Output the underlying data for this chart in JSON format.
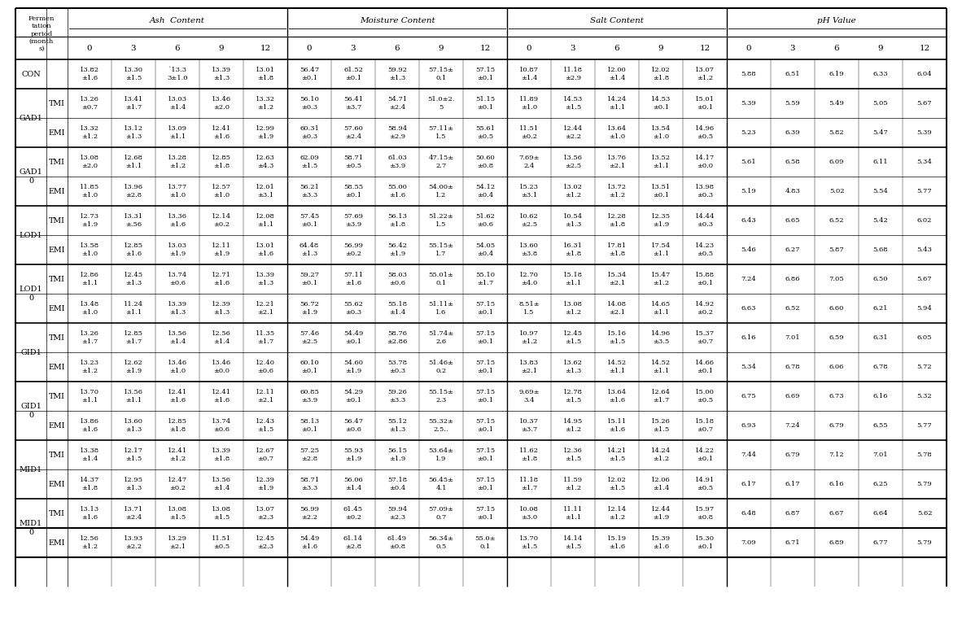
{
  "col_months": [
    "0",
    "3",
    "6",
    "9",
    "12",
    "0",
    "3",
    "6",
    "9",
    "12",
    "0",
    "3",
    "6",
    "9",
    "12",
    "0",
    "3",
    "6",
    "9",
    "12"
  ],
  "group_labels": [
    "Ash  Content",
    "Moisture Content",
    "Salt Content",
    "pH Value"
  ],
  "rows": [
    {
      "group": "CON",
      "sub": "",
      "cells": [
        "13.82\n±1.6",
        "13.30\n±1.5",
        "`13.3\n3±1.0",
        "13.39\n±1.3",
        "13.01\n±1.8",
        "56.47\n±0.1",
        "61.52\n±0.1",
        "59.92\n±1.3",
        "57.15±\n0.1",
        "57.15\n±0.1",
        "10.87\n±1.4",
        "11.18\n±2.9",
        "12.00\n±1.4",
        "12.02\n±1.8",
        "13.07\n±1.2",
        "5.88",
        "6.51",
        "6.19",
        "6.33",
        "6.04"
      ]
    },
    {
      "group": "GAD1",
      "sub": "TMI",
      "cells": [
        "13.26\n±0.7",
        "13.41\n±1.7",
        "13.03\n±1.4",
        "13.46\n±2.0",
        "13.32\n±1.2",
        "56.10\n±0.3",
        "56.41\n±3.7",
        "54.71\n±2.4",
        "51.0±2.\n5",
        "51.15\n±0.1",
        "11.89\n±1.0",
        "14.53\n±1.5",
        "14.24\n±1.1",
        "14.53\n±0.1",
        "15.01\n±0.1",
        "5.39",
        "5.59",
        "5.49",
        "5.05",
        "5.67"
      ]
    },
    {
      "group": "",
      "sub": "EMI",
      "cells": [
        "13.32\n±1.2",
        "13.12\n±1.3",
        "13.09\n±1.1",
        "12.41\n±1.6",
        "12.99\n±1.9",
        "60.31\n±0.3",
        "57.60\n±2.4",
        "58.94\n±2.9",
        "57.11±\n1.5",
        "55.61\n±0.5",
        "11.51\n±0.2",
        "12.44\n±2.2",
        "13.64\n±1.0",
        "13.54\n±1.0",
        "14.96\n±0.5",
        "5.23",
        "6.39",
        "5.82",
        "5.47",
        "5.39"
      ]
    },
    {
      "group": "GAD1\n0",
      "sub": "TMI",
      "cells": [
        "13.08\n±2.0",
        "12.68\n±1.1",
        "13.28\n±1.2",
        "12.85\n±1.8",
        "12.63\n±4.3",
        "62.09\n±1.5",
        "58.71\n±0.5",
        "61.03\n±3.9",
        "47.15±\n2.7",
        "50.60\n±0.8",
        "7.69±\n2.4",
        "13.56\n±2.5",
        "13.76\n±2.1",
        "13.52\n±1.1",
        "14.17\n±0.0",
        "5.61",
        "6.58",
        "6.09",
        "6.11",
        "5.34"
      ]
    },
    {
      "group": "",
      "sub": "EMI",
      "cells": [
        "11.85\n±1.0",
        "13.96\n±2.8",
        "13.77\n±1.0",
        "12.57\n±1.0",
        "12.01\n±3.1",
        "56.21\n±3.3",
        "58.55\n±0.1",
        "55.00\n±1.6",
        "54.00±\n1.2",
        "54.12\n±0.4",
        "15.23\n±3.1",
        "13.02\n±1.2",
        "13.72\n±1.2",
        "13.51\n±0.1",
        "13.98\n±0.3",
        "5.19",
        "4.83",
        "5.02",
        "5.54",
        "5.77"
      ]
    },
    {
      "group": "LOD1",
      "sub": "TMI",
      "cells": [
        "12.73\n±1.9",
        "13.31\n±.56",
        "13.36\n±1.6",
        "12.14\n±0.2",
        "12.08\n±1.1",
        "57.45\n±0.1",
        "57.69\n±3.9",
        "56.13\n±1.8",
        "51.22±\n1.5",
        "51.62\n±0.6",
        "10.62\n±2.5",
        "10.54\n±1.3",
        "12.28\n±1.8",
        "12.35\n±1.9",
        "14.44\n±0.3",
        "6.43",
        "6.65",
        "6.52",
        "5.42",
        "6.02"
      ]
    },
    {
      "group": "",
      "sub": "EMI",
      "cells": [
        "13.58\n±1.0",
        "12.85\n±1.6",
        "13.03\n±1.9",
        "12.11\n±1.9",
        "13.01\n±1.6",
        "64.48\n±1.3",
        "56.99\n±0.2",
        "56.42\n±1.9",
        "55.15±\n1.7",
        "54.05\n±0.4",
        "13.60\n±3.8",
        "16.31\n±1.8",
        "17.81\n±1.8",
        "17.54\n±1.1",
        "14.23\n±0.5",
        "5.46",
        "6.27",
        "5.87",
        "5.68",
        "5.43"
      ]
    },
    {
      "group": "LOD1\n0",
      "sub": "TMI",
      "cells": [
        "12.86\n±1.1",
        "12.45\n±1.3",
        "13.74\n±0.6",
        "12.71\n±1.6",
        "13.39\n±1.3",
        "59.27\n±0.1",
        "57.11\n±1.6",
        "58.03\n±0.6",
        "55.01±\n0.1",
        "55.10\n±1.7",
        "12.70\n±4.0",
        "15.18\n±1.1",
        "15.34\n±2.1",
        "15.47\n±1.2",
        "15.88\n±0.1",
        "7.24",
        "6.86",
        "7.05",
        "6.50",
        "5.67"
      ]
    },
    {
      "group": "",
      "sub": "EMI",
      "cells": [
        "13.48\n±1.0",
        "11.24\n±1.1",
        "13.39\n±1.3",
        "12.39\n±1.3",
        "12.21\n±2.1",
        "56.72\n±1.9",
        "55.62\n±0.3",
        "55.18\n±1.4",
        "51.11±\n1.6",
        "57.15\n±0.1",
        "8.51±\n1.5",
        "13.08\n±1.2",
        "14.08\n±2.1",
        "14.65\n±1.1",
        "14.92\n±0.2",
        "6.63",
        "6.52",
        "6.60",
        "6.21",
        "5.94"
      ]
    },
    {
      "group": "GID1",
      "sub": "TMI",
      "cells": [
        "13.26\n±1.7",
        "12.85\n±1.7",
        "13.56\n±1.4",
        "12.56\n±1.4",
        "11.35\n±1.7",
        "57.46\n±2.5",
        "54.49\n±0.1",
        "58.76\n±2.86",
        "51.74±\n2.6",
        "57.15\n±0.1",
        "10.97\n±1.2",
        "12.45\n±1.5",
        "15.16\n±1.5",
        "14.96\n±3.5",
        "15.37\n±0.7",
        "6.16",
        "7.01",
        "6.59",
        "6.31",
        "6.05"
      ]
    },
    {
      "group": "",
      "sub": "EMI",
      "cells": [
        "13.23\n±1.2",
        "12.62\n±1.9",
        "13.46\n±1.0",
        "13.46\n±0.0",
        "12.40\n±0.6",
        "60.10\n±0.1",
        "54.60\n±1.9",
        "53.78\n±0.3",
        "51.46±\n0.2",
        "57.15\n±0.1",
        "13.83\n±2.1",
        "13.62\n±1.3",
        "14.52\n±1.1",
        "14.52\n±1.1",
        "14.66\n±0.1",
        "5.34",
        "6.78",
        "6.06",
        "6.78",
        "5.72"
      ]
    },
    {
      "group": "GID1\n0",
      "sub": "TMI",
      "cells": [
        "13.70\n±1.1",
        "13.56\n±1.1",
        "12.41\n±1.6",
        "12.41\n±1.6",
        "12.11\n±2.1",
        "60.85\n±3.9",
        "54.29\n±0.1",
        "59.26\n±3.3",
        "55.15±\n2.3",
        "57.15\n±0.1",
        "9.69±\n3.4",
        "12.78\n±1.5",
        "13.64\n±1.6",
        "12.64\n±1.7",
        "15.00\n±0.5",
        "6.75",
        "6.69",
        "6.73",
        "6.16",
        "5.32"
      ]
    },
    {
      "group": "",
      "sub": "EMI",
      "cells": [
        "13.86\n±1.6",
        "13.60\n±1.3",
        "12.85\n±1.8",
        "13.74\n±0.6",
        "12.43\n±1.5",
        "58.13\n±0.1",
        "56.47\n±0.6",
        "55.12\n±1.3",
        "55.32±\n2.5..",
        "57.15\n±0.1",
        "10.37\n±3.7",
        "14.95\n±1.2",
        "15.11\n±1.6",
        "15.26\n±1.5",
        "15.18\n±0.7",
        "6.93",
        "7.24",
        "6.79",
        "6.55",
        "5.77"
      ]
    },
    {
      "group": "MID1",
      "sub": "TMI",
      "cells": [
        "13.38\n±1.4",
        "12.17\n±1.5",
        "12.41\n±1.2",
        "13.39\n±1.8",
        "12.67\n±0.7",
        "57.25\n±2.8",
        "55.93\n±1.9",
        "56.15\n±1.9",
        "53.64±\n1.9",
        "57.15\n±0.1",
        "11.62\n±1.8",
        "12.36\n±1.5",
        "14.21\n±1.5",
        "14.24\n±1.2",
        "14.22\n±0.1",
        "7.44",
        "6.79",
        "7.12",
        "7.01",
        "5.78"
      ]
    },
    {
      "group": "",
      "sub": "EMI",
      "cells": [
        "14.37\n±1.8",
        "12.95\n±1.3",
        "12.47\n±0.2",
        "13.56\n±1.4",
        "12.39\n±1.9",
        "58.71\n±3.3",
        "56.06\n±1.4",
        "57.18\n±0.4",
        "56.45±\n4.1",
        "57.15\n±0.1",
        "11.18\n±1.7",
        "11.59\n±1.2",
        "12.02\n±1.5",
        "12.06\n±1.4",
        "14.91\n±0.5",
        "6.17",
        "6.17",
        "6.16",
        "6.25",
        "5.79"
      ]
    },
    {
      "group": "MID1\n0",
      "sub": "TMI",
      "cells": [
        "13.13\n±1.6",
        "13.71\n±2.4",
        "13.08\n±1.5",
        "13.08\n±1.5",
        "13.07\n±2.3",
        "56.99\n±2.2",
        "61.45\n±0.2",
        "59.94\n±2.3",
        "57.09±\n0.7",
        "57.15\n±0.1",
        "10.08\n±3.0",
        "11.11\n±1.1",
        "12.14\n±1.2",
        "12.44\n±1.9",
        "15.97\n±0.8",
        "6.48",
        "6.87",
        "6.67",
        "6.64",
        "5.62"
      ]
    },
    {
      "group": "",
      "sub": "EMI",
      "cells": [
        "12.56\n±1.2",
        "13.93\n±2.2",
        "13.29\n±2.1",
        "11.51\n±0.5",
        "12.45\n±2.3",
        "54.49\n±1.6",
        "61.14\n±2.8",
        "61.49\n±0.8",
        "56.34±\n0.5",
        "55.0±\n0.1",
        "13.70\n±1.5",
        "14.14\n±1.5",
        "15.19\n±1.6",
        "15.39\n±1.6",
        "15.30\n±0.1",
        "7.09",
        "6.71",
        "6.89",
        "6.77",
        "5.79"
      ]
    }
  ]
}
